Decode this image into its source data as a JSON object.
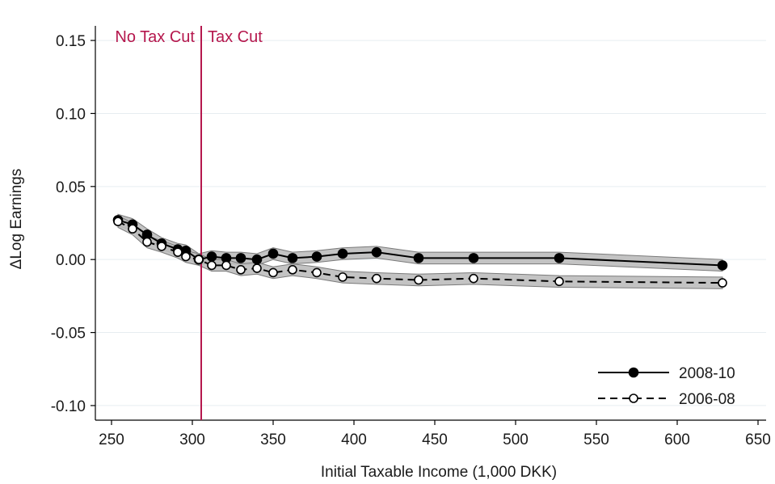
{
  "chart_data": {
    "type": "line",
    "xlabel": "Initial Taxable Income (1,000 DKK)",
    "ylabel": "ΔLog Earnings",
    "xlim": [
      240,
      655
    ],
    "ylim": [
      -0.11,
      0.16
    ],
    "xticks": [
      250,
      300,
      350,
      400,
      450,
      500,
      550,
      600,
      650
    ],
    "xtick_labels": [
      "250",
      "300",
      "350",
      "400",
      "450",
      "500",
      "550",
      "600",
      "650"
    ],
    "yticks": [
      -0.1,
      -0.05,
      0.0,
      0.05,
      0.1,
      0.15
    ],
    "ytick_labels": [
      "-0.10",
      "-0.05",
      "0.00",
      "0.05",
      "0.10",
      "0.15"
    ],
    "grid": "horizontal",
    "legend_position": "bottom-right",
    "vline": {
      "x": 305.5,
      "color": "#b5174d"
    },
    "annotations": [
      {
        "text": "No Tax Cut",
        "side": "left"
      },
      {
        "text": "Tax Cut",
        "side": "right"
      }
    ],
    "series": [
      {
        "name": "2008-10",
        "marker": "filled-circle",
        "line": "solid",
        "x": [
          254,
          263,
          272,
          281,
          291,
          296,
          304,
          312,
          321,
          330,
          340,
          350,
          362,
          377,
          393,
          414,
          440,
          474,
          527,
          628
        ],
        "y": [
          0.027,
          0.024,
          0.017,
          0.011,
          0.007,
          0.006,
          0.0,
          0.002,
          0.001,
          0.001,
          0.0,
          0.004,
          0.001,
          0.002,
          0.004,
          0.005,
          0.001,
          0.001,
          0.001,
          -0.004
        ],
        "ci_half_width": 0.004
      },
      {
        "name": "2006-08",
        "marker": "hollow-circle",
        "line": "dashed",
        "x": [
          254,
          263,
          272,
          281,
          291,
          296,
          304,
          312,
          321,
          330,
          340,
          350,
          362,
          377,
          393,
          414,
          440,
          474,
          527,
          628
        ],
        "y": [
          0.026,
          0.021,
          0.012,
          0.009,
          0.005,
          0.002,
          0.0,
          -0.004,
          -0.004,
          -0.007,
          -0.006,
          -0.009,
          -0.007,
          -0.009,
          -0.012,
          -0.013,
          -0.014,
          -0.013,
          -0.015,
          -0.016
        ],
        "ci_half_width": 0.004
      }
    ],
    "colors": {
      "line": "#000000",
      "band": "#bdbdbd",
      "band_edge": "#7a7a7a",
      "grid": "#e6edf0",
      "vline": "#b5174d",
      "annotation": "#b5174d"
    }
  }
}
